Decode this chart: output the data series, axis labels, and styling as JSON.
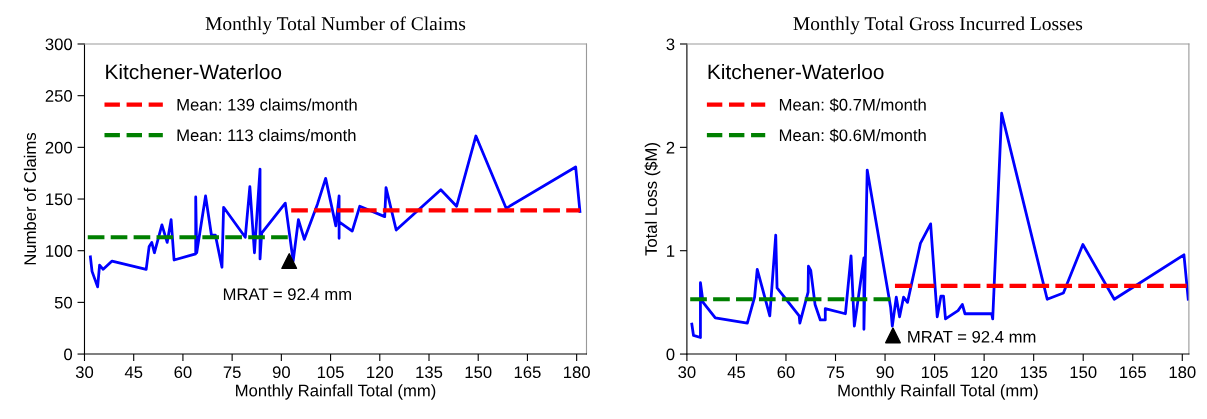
{
  "chart_data": [
    {
      "type": "line",
      "title": "Monthly Total Number of Claims",
      "xlabel": "Monthly Rainfall Total (mm)",
      "ylabel": "Number of Claims",
      "xlim": [
        30,
        183
      ],
      "xticks": [
        30,
        45,
        60,
        75,
        90,
        105,
        120,
        135,
        150,
        165,
        180
      ],
      "ylim": [
        0,
        300
      ],
      "yticks": [
        0,
        50,
        100,
        150,
        200,
        250,
        300
      ],
      "grid": false,
      "legend": "top left",
      "legend_title": "Kitchener-Waterloo",
      "series": [
        {
          "color": "#0000ff",
          "line_style": "solid",
          "x": [
            31.8,
            32.3,
            34,
            34.6,
            35.7,
            38.4,
            48.8,
            49.7,
            50.5,
            51.3,
            53.6,
            55.2,
            56.4,
            57.3,
            63.9,
            63.9,
            64.2,
            66.9,
            68.7,
            69.9,
            71.9,
            72.4,
            79,
            80.4,
            81.8,
            83.5,
            83.5,
            84,
            91.2,
            93.6,
            95.2,
            97,
            101,
            103.5,
            106.6,
            107.6,
            107.6,
            107.6,
            111.6,
            113.9,
            121.5,
            121.9,
            125,
            138.6,
            143.4,
            149.3,
            158.5,
            179.7,
            181
          ],
          "values": [
            94,
            80,
            65,
            86,
            82,
            90,
            82,
            104,
            108,
            98,
            125,
            108,
            130,
            91,
            97,
            152,
            98,
            153,
            115,
            115,
            84,
            142,
            113,
            162,
            98,
            179,
            92,
            117,
            146,
            90,
            130,
            111,
            145,
            170,
            124,
            153,
            112,
            128,
            119,
            143,
            133,
            161,
            120,
            159,
            143,
            211,
            141,
            181,
            138
          ]
        },
        {
          "name": "Mean: 139 claims/month",
          "color": "#ff0000",
          "line_style": "dashed",
          "x": [
            93,
            181
          ],
          "values": [
            139,
            139
          ]
        },
        {
          "name": "Mean: 113 claims/month",
          "color": "#008000",
          "line_style": "dashed",
          "x": [
            31,
            92
          ],
          "values": [
            113,
            113
          ]
        },
        {
          "type": "scatter",
          "marker": "triangle",
          "color": "#000000",
          "x": [
            92.4
          ],
          "values": [
            90
          ]
        }
      ],
      "annotations": [
        {
          "text": "MRAT = 92.4 mm",
          "x": 92.4,
          "y": 90
        }
      ]
    },
    {
      "type": "line",
      "title": "Monthly Total Gross Incurred Losses",
      "xlabel": "Monthly Rainfall Total (mm)",
      "ylabel": "Total Loss ($M)",
      "xlim": [
        30,
        182
      ],
      "xticks": [
        30,
        45,
        60,
        75,
        90,
        105,
        120,
        135,
        150,
        165,
        180
      ],
      "ylim": [
        0,
        3
      ],
      "yticks": [
        0,
        1,
        2,
        3
      ],
      "grid": false,
      "legend": "top left",
      "legend_title": "Kitchener-Waterloo",
      "series": [
        {
          "color": "#0000ff",
          "line_style": "solid",
          "x": [
            31.5,
            32,
            34.1,
            34.1,
            34.9,
            38.6,
            48.3,
            50.5,
            51.3,
            55.1,
            56.9,
            57.3,
            64,
            64.2,
            66.7,
            66.8,
            67.5,
            68.8,
            70.4,
            71.9,
            71.9,
            78,
            79.7,
            80.7,
            83.6,
            83.6,
            84.6,
            91.7,
            92.2,
            93.4,
            94.4,
            95.6,
            96.8,
            100.7,
            103.8,
            105.8,
            106.9,
            107.7,
            108.3,
            112.1,
            113.4,
            114.2,
            122.3,
            122.6,
            125.3,
            139.1,
            144,
            149.9,
            159.4,
            180.5,
            181.8
          ],
          "values": [
            0.29,
            0.18,
            0.16,
            0.69,
            0.5,
            0.35,
            0.3,
            0.55,
            0.82,
            0.37,
            1.15,
            0.64,
            0.37,
            0.3,
            0.6,
            0.85,
            0.81,
            0.48,
            0.33,
            0.33,
            0.44,
            0.39,
            0.95,
            0.27,
            0.93,
            0.24,
            1.78,
            0.45,
            0.27,
            0.55,
            0.36,
            0.55,
            0.5,
            1.07,
            1.26,
            0.36,
            0.56,
            0.56,
            0.34,
            0.42,
            0.48,
            0.39,
            0.39,
            0.34,
            2.33,
            0.53,
            0.59,
            1.06,
            0.53,
            0.96,
            0.53
          ]
        },
        {
          "name": "Mean: $0.7M/month",
          "color": "#ff0000",
          "line_style": "dashed",
          "x": [
            93,
            182
          ],
          "values": [
            0.66,
            0.66
          ]
        },
        {
          "name": "Mean: $0.6M/month",
          "color": "#008000",
          "line_style": "dashed",
          "x": [
            31,
            92
          ],
          "values": [
            0.53,
            0.53
          ]
        },
        {
          "type": "scatter",
          "marker": "triangle",
          "color": "#000000",
          "x": [
            92.4
          ],
          "values": [
            0.18
          ]
        }
      ],
      "annotations": [
        {
          "text": "MRAT = 92.4 mm",
          "x": 92.4,
          "y": 0.18
        }
      ]
    }
  ]
}
